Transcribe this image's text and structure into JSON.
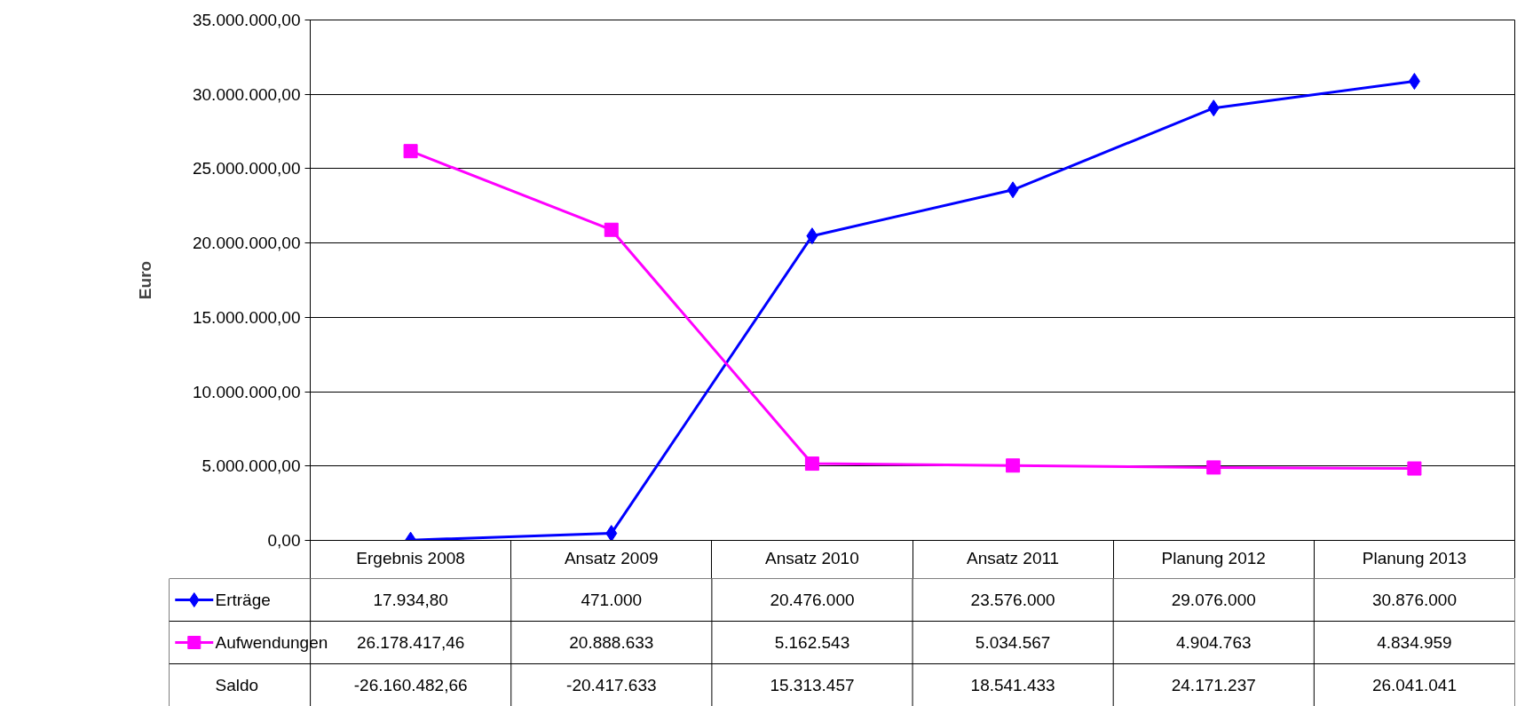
{
  "chart_data": {
    "type": "line",
    "ylabel": "Euro",
    "categories": [
      "Ergebnis 2008",
      "Ansatz 2009",
      "Ansatz 2010",
      "Ansatz 2011",
      "Planung 2012",
      "Planung 2013"
    ],
    "series": [
      {
        "name": "Erträge",
        "color": "#0000ff",
        "marker": "diamond",
        "values": [
          17934.8,
          471000,
          20476000,
          23576000,
          29076000,
          30876000
        ],
        "value_labels": [
          "17.934,80",
          "471.000",
          "20.476.000",
          "23.576.000",
          "29.076.000",
          "30.876.000"
        ]
      },
      {
        "name": "Aufwendungen",
        "color": "#ff00ff",
        "marker": "square",
        "values": [
          26178417.46,
          20888633,
          5162543,
          5034567,
          4904763,
          4834959
        ],
        "value_labels": [
          "26.178.417,46",
          "20.888.633",
          "5.162.543",
          "5.034.567",
          "4.904.763",
          "4.834.959"
        ]
      }
    ],
    "annotations": [
      "Saldo",
      "-26.160.482,66",
      "-20.417.633",
      "15.313.457",
      "18.541.433",
      "24.171.237",
      "26.041.041"
    ],
    "ylim": [
      0,
      35000000
    ],
    "yticks": [
      {
        "value": 0,
        "label": "0,00"
      },
      {
        "value": 5000000,
        "label": "5.000.000,00"
      },
      {
        "value": 10000000,
        "label": "10.000.000,00"
      },
      {
        "value": 15000000,
        "label": "15.000.000,00"
      },
      {
        "value": 20000000,
        "label": "20.000.000,00"
      },
      {
        "value": 25000000,
        "label": "25.000.000,00"
      },
      {
        "value": 30000000,
        "label": "30.000.000,00"
      },
      {
        "value": 35000000,
        "label": "35.000.000,00"
      }
    ],
    "grid": "y",
    "legend": "bottom",
    "line_style": "solid"
  }
}
